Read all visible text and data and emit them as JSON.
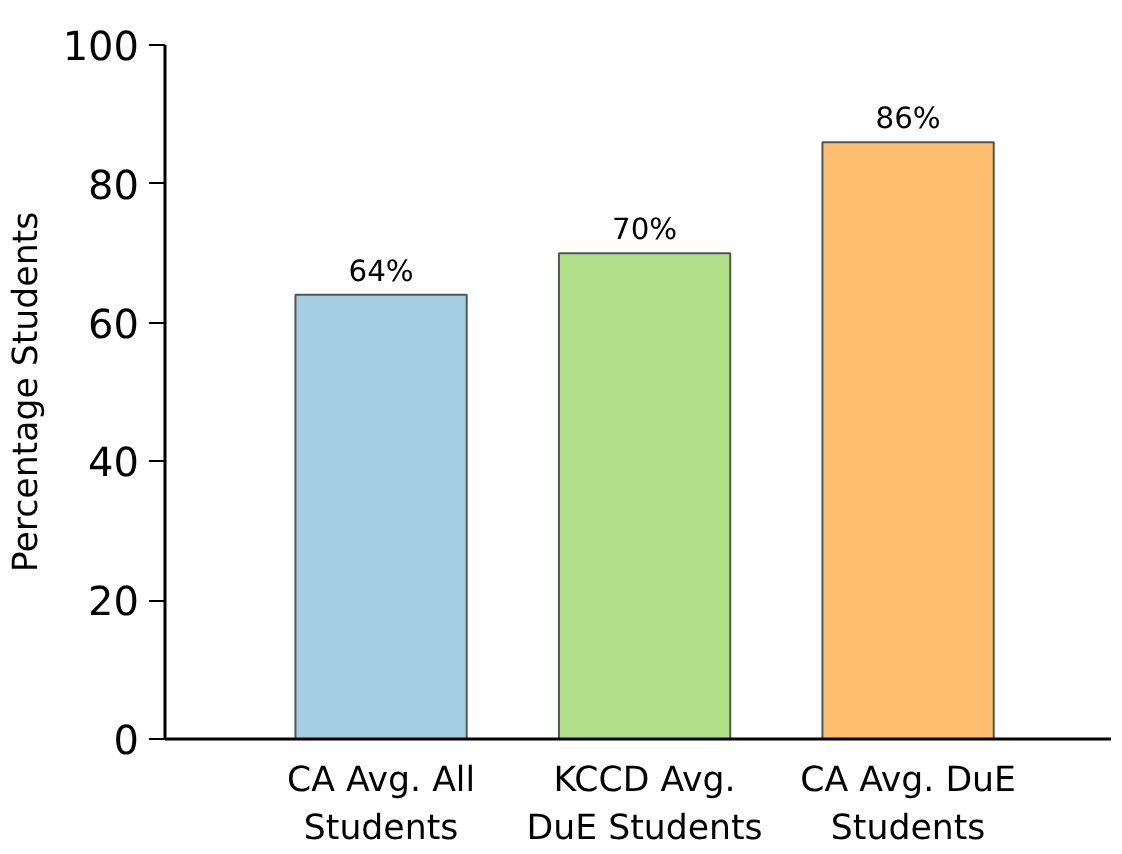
{
  "chart_data": {
    "type": "bar",
    "ylabel": "Percentage Students",
    "categories": [
      "CA Avg. All\nStudents",
      "KCCD Avg.\nDuE Students",
      "CA Avg. DuE\nStudents"
    ],
    "values": [
      64,
      70,
      86
    ],
    "colors": [
      "#a6cee3",
      "#b2df8a",
      "#fdbf6f"
    ],
    "value_labels": [
      "64%",
      "70%",
      "86%"
    ],
    "ylim": [
      0,
      100
    ],
    "yticks": [
      0,
      20,
      40,
      60,
      80,
      100
    ],
    "grid": false
  }
}
